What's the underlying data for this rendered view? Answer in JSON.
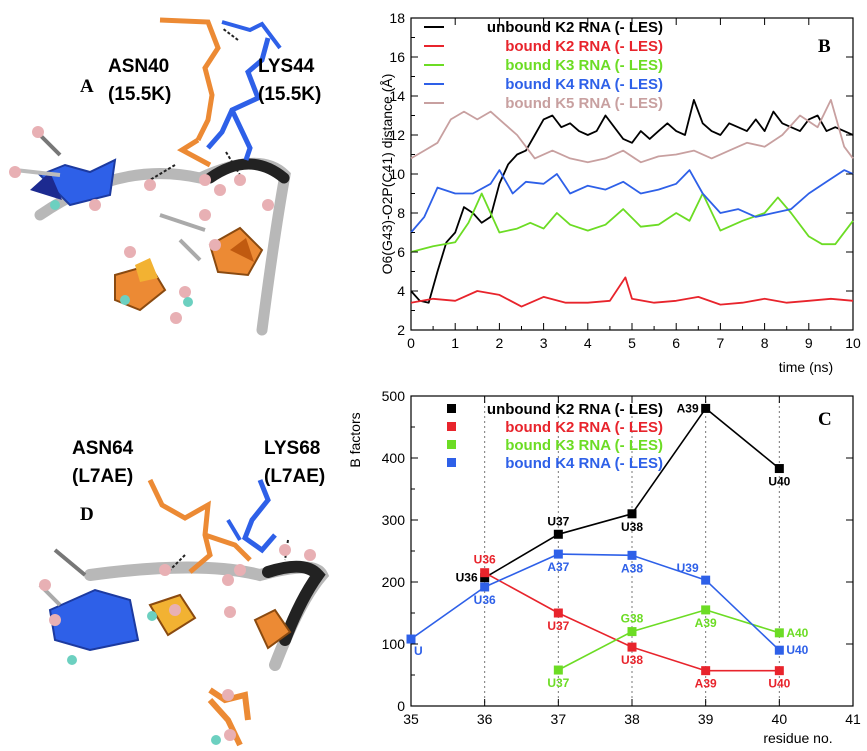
{
  "panels": {
    "a": {
      "letter": "A",
      "res1": "ASN40",
      "res1_sub": "(15.5K)",
      "res2": "LYS44",
      "res2_sub": "(15.5K)"
    },
    "d": {
      "letter": "D",
      "res1": "ASN64",
      "res1_sub": "(L7AE)",
      "res2": "LYS68",
      "res2_sub": "(L7AE)"
    },
    "b": {
      "letter": "B"
    },
    "c": {
      "letter": "C"
    }
  },
  "colors": {
    "black": "#000000",
    "red": "#e8242c",
    "green": "#6cdc24",
    "blue": "#2e60e8",
    "pink": "#c8a0a0",
    "orange": "#ec8a34",
    "gray": "#b8b8b8"
  },
  "chart_data": [
    {
      "type": "line",
      "ylabel": "O6(G43)-O2P(C41) distance (Å)",
      "xlabel": "time (ns)",
      "xlim": [
        0,
        10
      ],
      "ylim": [
        2,
        18
      ],
      "xticks": [
        "0",
        "1",
        "2",
        "3",
        "4",
        "5",
        "6",
        "7",
        "8",
        "9",
        "10"
      ],
      "yticks": [
        "2",
        "4",
        "6",
        "8",
        "10",
        "12",
        "14",
        "16",
        "18"
      ],
      "legend_position": "top-left",
      "series": [
        {
          "name": "unbound K2 RNA (- LES)",
          "color": "#000000",
          "x": [
            0,
            0.2,
            0.4,
            0.6,
            0.8,
            1.0,
            1.2,
            1.4,
            1.6,
            1.8,
            2.0,
            2.2,
            2.4,
            2.6,
            2.8,
            3.0,
            3.2,
            3.4,
            3.6,
            3.8,
            4.0,
            4.2,
            4.4,
            4.6,
            4.8,
            5.0,
            5.2,
            5.4,
            5.6,
            5.8,
            6.0,
            6.2,
            6.4,
            6.6,
            6.8,
            7.0,
            7.2,
            7.4,
            7.6,
            7.8,
            8.0,
            8.2,
            8.4,
            8.6,
            8.8,
            9.0,
            9.2,
            9.4,
            9.6,
            9.8,
            10.0
          ],
          "y": [
            4.0,
            3.5,
            3.4,
            5.0,
            6.5,
            7.0,
            8.3,
            8.0,
            7.5,
            7.8,
            9.5,
            10.5,
            11.0,
            11.2,
            12.0,
            12.8,
            13.0,
            12.4,
            12.6,
            12.2,
            12.0,
            12.2,
            13.0,
            12.4,
            11.8,
            11.6,
            12.2,
            11.8,
            12.2,
            12.6,
            12.2,
            12.0,
            13.8,
            12.6,
            12.2,
            12.0,
            12.6,
            12.4,
            12.2,
            12.8,
            12.2,
            13.2,
            12.6,
            12.4,
            12.2,
            12.8,
            13.0,
            12.2,
            12.4,
            12.2,
            12.0
          ]
        },
        {
          "name": "bound K2 RNA (- LES)",
          "color": "#e8242c",
          "x": [
            0,
            0.5,
            1.0,
            1.5,
            2.0,
            2.5,
            3.0,
            3.5,
            4.0,
            4.5,
            4.85,
            5.0,
            5.5,
            6.0,
            6.5,
            7.0,
            7.5,
            8.0,
            8.5,
            9.0,
            9.5,
            10.0
          ],
          "y": [
            3.4,
            3.6,
            3.5,
            4.0,
            3.8,
            3.2,
            3.7,
            3.4,
            3.4,
            3.5,
            4.7,
            3.6,
            3.4,
            3.5,
            3.7,
            3.3,
            3.4,
            3.6,
            3.4,
            3.5,
            3.6,
            3.5
          ]
        },
        {
          "name": "bound K3 RNA (- LES)",
          "color": "#6cdc24",
          "x": [
            0,
            0.5,
            1.0,
            1.3,
            1.6,
            2.0,
            2.4,
            2.7,
            3.0,
            3.3,
            3.6,
            4.0,
            4.4,
            4.8,
            5.2,
            5.6,
            6.0,
            6.3,
            6.6,
            7.0,
            7.5,
            8.0,
            8.3,
            8.6,
            9.0,
            9.3,
            9.6,
            10.0
          ],
          "y": [
            6.0,
            6.3,
            6.5,
            7.5,
            9.0,
            7.0,
            7.2,
            7.5,
            7.2,
            8.0,
            7.4,
            7.1,
            7.4,
            8.2,
            7.3,
            7.4,
            8.0,
            7.6,
            9.0,
            7.1,
            7.6,
            8.0,
            8.8,
            8.0,
            6.8,
            6.4,
            6.4,
            7.6
          ]
        },
        {
          "name": "bound K4 RNA (- LES)",
          "color": "#2e60e8",
          "x": [
            0,
            0.3,
            0.6,
            1.0,
            1.4,
            1.8,
            2.0,
            2.3,
            2.6,
            3.0,
            3.3,
            3.6,
            4.0,
            4.4,
            4.8,
            5.2,
            5.6,
            6.0,
            6.3,
            6.6,
            7.0,
            7.4,
            7.8,
            8.2,
            8.6,
            9.0,
            9.4,
            9.8,
            10.0
          ],
          "y": [
            7.0,
            7.8,
            9.3,
            9.0,
            9.0,
            9.5,
            10.2,
            9.0,
            9.6,
            9.5,
            10.0,
            9.0,
            9.4,
            9.2,
            9.6,
            9.0,
            9.2,
            9.5,
            10.2,
            9.0,
            8.0,
            8.2,
            7.8,
            8.0,
            8.2,
            9.0,
            9.6,
            10.2,
            10.0
          ]
        },
        {
          "name": "bound K5 RNA (- LES)",
          "color": "#c8a0a0",
          "x": [
            0,
            0.3,
            0.6,
            0.9,
            1.2,
            1.5,
            1.8,
            2.1,
            2.4,
            2.8,
            3.2,
            3.6,
            4.0,
            4.4,
            4.8,
            5.2,
            5.6,
            6.0,
            6.4,
            6.8,
            7.2,
            7.6,
            8.0,
            8.4,
            8.8,
            9.2,
            9.5,
            9.8,
            10.0
          ],
          "y": [
            10.8,
            11.2,
            11.6,
            12.8,
            13.2,
            12.8,
            13.2,
            12.6,
            12.0,
            10.8,
            11.2,
            10.8,
            10.6,
            10.8,
            11.2,
            10.6,
            10.9,
            11.0,
            11.2,
            10.8,
            11.2,
            11.6,
            11.4,
            12.0,
            13.0,
            12.4,
            13.8,
            11.4,
            10.8
          ]
        }
      ]
    },
    {
      "type": "line",
      "ylabel": "B factors",
      "xlabel": "residue  no.",
      "xlim": [
        35,
        41
      ],
      "ylim": [
        0,
        500
      ],
      "xticks": [
        "35",
        "36",
        "37",
        "38",
        "39",
        "40",
        "41"
      ],
      "yticks": [
        "0",
        "100",
        "200",
        "300",
        "400",
        "500"
      ],
      "legend_position": "top-left",
      "series": [
        {
          "name": "unbound K2 RNA (- LES)",
          "color": "#000000",
          "x": [
            36,
            37,
            38,
            39,
            40
          ],
          "y": [
            207,
            277,
            310,
            480,
            383
          ],
          "labels": [
            {
              "text": "U36",
              "side": "left"
            },
            {
              "text": "U37",
              "side": "above"
            },
            {
              "text": "U38",
              "side": "below"
            },
            {
              "text": "A39",
              "side": "left"
            },
            {
              "text": "U40",
              "side": "below"
            }
          ]
        },
        {
          "name": "bound K2 RNA (- LES)",
          "color": "#e8242c",
          "x": [
            36,
            37,
            38,
            39,
            40
          ],
          "y": [
            215,
            150,
            95,
            57,
            57
          ],
          "labels": [
            {
              "text": "U36",
              "side": "above"
            },
            {
              "text": "U37",
              "side": "below"
            },
            {
              "text": "U38",
              "side": "below"
            },
            {
              "text": "A39",
              "side": "below"
            },
            {
              "text": "U40",
              "side": "below"
            }
          ]
        },
        {
          "name": "bound K3 RNA (- LES)",
          "color": "#6cdc24",
          "x": [
            37,
            38,
            39,
            40
          ],
          "y": [
            58,
            120,
            155,
            118
          ],
          "labels": [
            {
              "text": "U37",
              "side": "below"
            },
            {
              "text": "G38",
              "side": "above"
            },
            {
              "text": "A39",
              "side": "below"
            },
            {
              "text": "A40",
              "side": "right"
            }
          ]
        },
        {
          "name": "bound K4 RNA (- LES)",
          "color": "#2e60e8",
          "x": [
            35,
            36,
            37,
            38,
            39,
            40
          ],
          "y": [
            108,
            192,
            245,
            243,
            203,
            90
          ],
          "labels": [
            {
              "text": "U",
              "side": "below-right"
            },
            {
              "text": "U36",
              "side": "below"
            },
            {
              "text": "A37",
              "side": "below"
            },
            {
              "text": "A38",
              "side": "below"
            },
            {
              "text": "U39",
              "side": "above-left"
            },
            {
              "text": "U40",
              "side": "right"
            }
          ]
        }
      ]
    }
  ]
}
